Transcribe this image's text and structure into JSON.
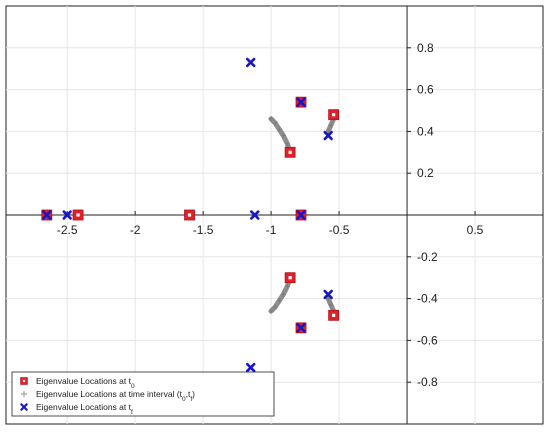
{
  "chart_data": {
    "type": "scatter",
    "title": "",
    "xlabel": "",
    "ylabel": "",
    "xlim": [
      -2.95,
      1.0
    ],
    "ylim": [
      -1.0,
      1.0
    ],
    "grid": true,
    "x_ticks": [
      -2.5,
      -2,
      -1.5,
      -1,
      -0.5,
      0.5
    ],
    "x_tick_labels": [
      "-2.5",
      "-2",
      "-1.5",
      "-1",
      "-0.5",
      "0.5"
    ],
    "y_ticks": [
      -0.8,
      -0.6,
      -0.4,
      -0.2,
      0.2,
      0.4,
      0.6,
      0.8
    ],
    "y_tick_labels": [
      "-0.8",
      "-0.6",
      "-0.4",
      "-0.2",
      "0.2",
      "0.4",
      "0.6",
      "0.8"
    ],
    "legend_position": "bottom-left",
    "colors": {
      "t0_fill": "#e0202a",
      "t0_inner": "#ffffff",
      "path": "#7a7a7a",
      "tf": "#1616c8",
      "grid": "#e6e6e6",
      "axis": "#222222"
    },
    "series": [
      {
        "name": "Eigenvalue Locations at t",
        "name_sub": "0",
        "marker": "square",
        "points": [
          [
            -2.65,
            0
          ],
          [
            -2.42,
            0
          ],
          [
            -1.6,
            0
          ],
          [
            -0.78,
            0
          ],
          [
            -0.78,
            0.54
          ],
          [
            -0.78,
            -0.54
          ],
          [
            -0.54,
            0.48
          ],
          [
            -0.54,
            -0.48
          ],
          [
            -0.86,
            0.3
          ],
          [
            -0.86,
            -0.3
          ]
        ]
      },
      {
        "name": "Eigenvalue Locations at time interval (t",
        "name_sub": "0",
        "name_mid": ",t",
        "name_sub2": "f",
        "name_end": ")",
        "marker": "plus",
        "paths": [
          [
            [
              -0.86,
              0.3
            ],
            [
              -0.88,
              0.34
            ],
            [
              -0.91,
              0.38
            ],
            [
              -0.94,
              0.41
            ],
            [
              -0.97,
              0.44
            ],
            [
              -1.0,
              0.46
            ]
          ],
          [
            [
              -0.86,
              -0.3
            ],
            [
              -0.88,
              -0.34
            ],
            [
              -0.91,
              -0.38
            ],
            [
              -0.94,
              -0.41
            ],
            [
              -0.97,
              -0.44
            ],
            [
              -1.0,
              -0.46
            ]
          ],
          [
            [
              -0.58,
              0.4
            ],
            [
              -0.56,
              0.43
            ],
            [
              -0.54,
              0.46
            ]
          ],
          [
            [
              -0.58,
              -0.4
            ],
            [
              -0.56,
              -0.43
            ],
            [
              -0.54,
              -0.46
            ]
          ]
        ]
      },
      {
        "name": "Eigenvalue Locations at t",
        "name_sub": "f",
        "marker": "x",
        "points": [
          [
            -2.65,
            0
          ],
          [
            -2.5,
            0
          ],
          [
            -1.12,
            0
          ],
          [
            -0.78,
            0
          ],
          [
            -1.15,
            0.73
          ],
          [
            -1.15,
            -0.73
          ],
          [
            -0.78,
            0.54
          ],
          [
            -0.78,
            -0.54
          ],
          [
            -0.58,
            0.38
          ],
          [
            -0.58,
            -0.38
          ]
        ]
      }
    ]
  }
}
